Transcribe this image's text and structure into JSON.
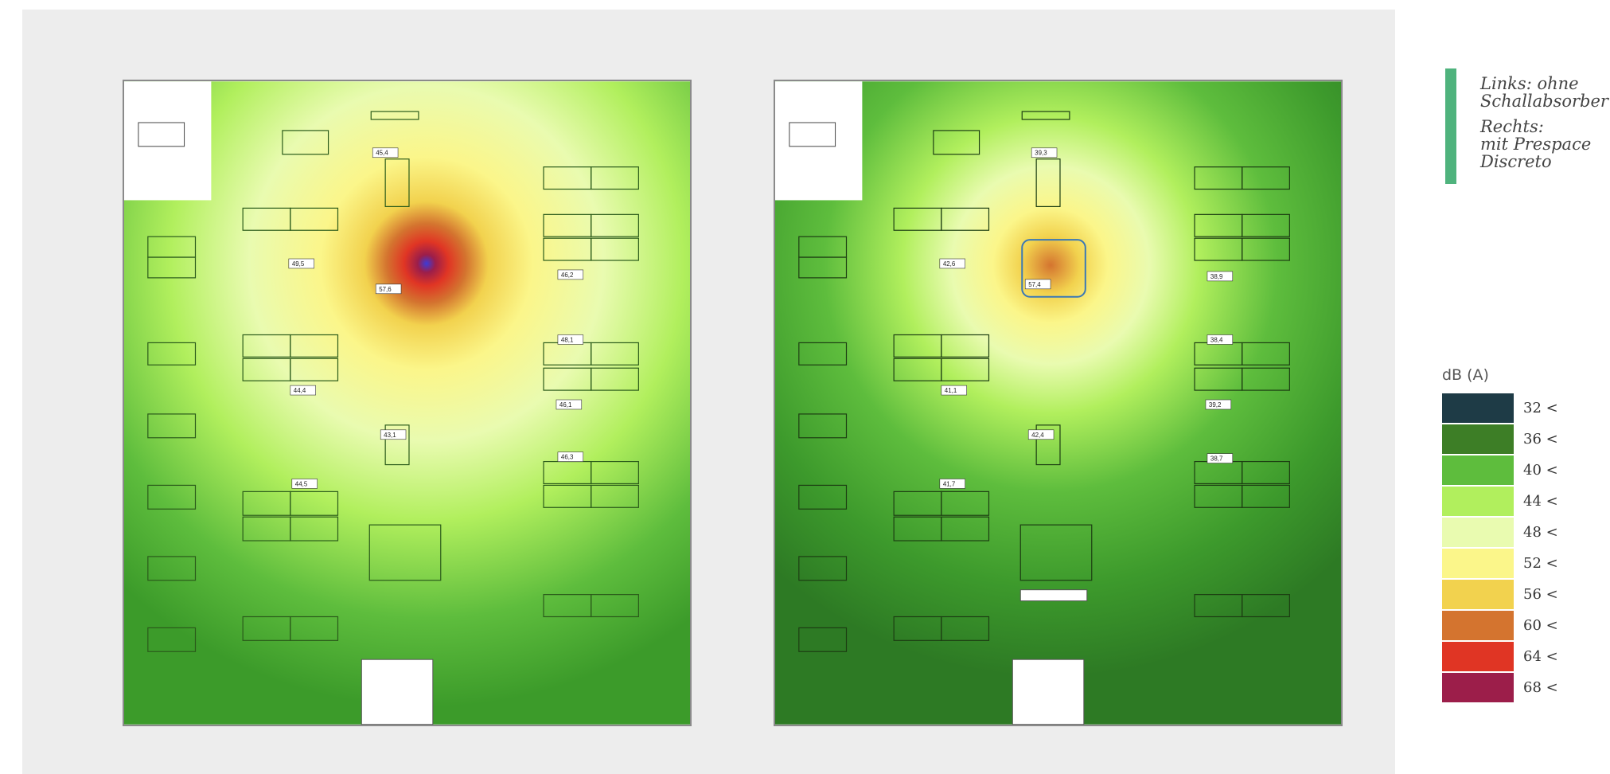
{
  "note": {
    "left_text": "Links: ohne\nSchallabsorber",
    "right_text": "Rechts:\nmit Prespace\nDiscreto",
    "bar_color": "#4fb37d"
  },
  "legend": {
    "title": "dB (A)",
    "items": [
      {
        "label": "32 <",
        "color": "#1e3b46"
      },
      {
        "label": "36 <",
        "color": "#3d7e26"
      },
      {
        "label": "40 <",
        "color": "#5ebd3d"
      },
      {
        "label": "44 <",
        "color": "#b1ef5d"
      },
      {
        "label": "48 <",
        "color": "#e9fbb0"
      },
      {
        "label": "52 <",
        "color": "#fbf68a"
      },
      {
        "label": "56 <",
        "color": "#f2d24e"
      },
      {
        "label": "60 <",
        "color": "#d4742f"
      },
      {
        "label": "64 <",
        "color": "#e03524"
      },
      {
        "label": "68 <",
        "color": "#9c1e4a"
      }
    ]
  },
  "left_plan": {
    "labels": [
      "45,4",
      "49,5",
      "57,6",
      "46,2",
      "48,1",
      "44,4",
      "46,1",
      "43,1",
      "46,3",
      "44,5"
    ]
  },
  "right_plan": {
    "labels": [
      "39,3",
      "42,6",
      "57,4",
      "38,9",
      "38,4",
      "41,1",
      "39,2",
      "42,4",
      "38,7",
      "41,7"
    ]
  }
}
